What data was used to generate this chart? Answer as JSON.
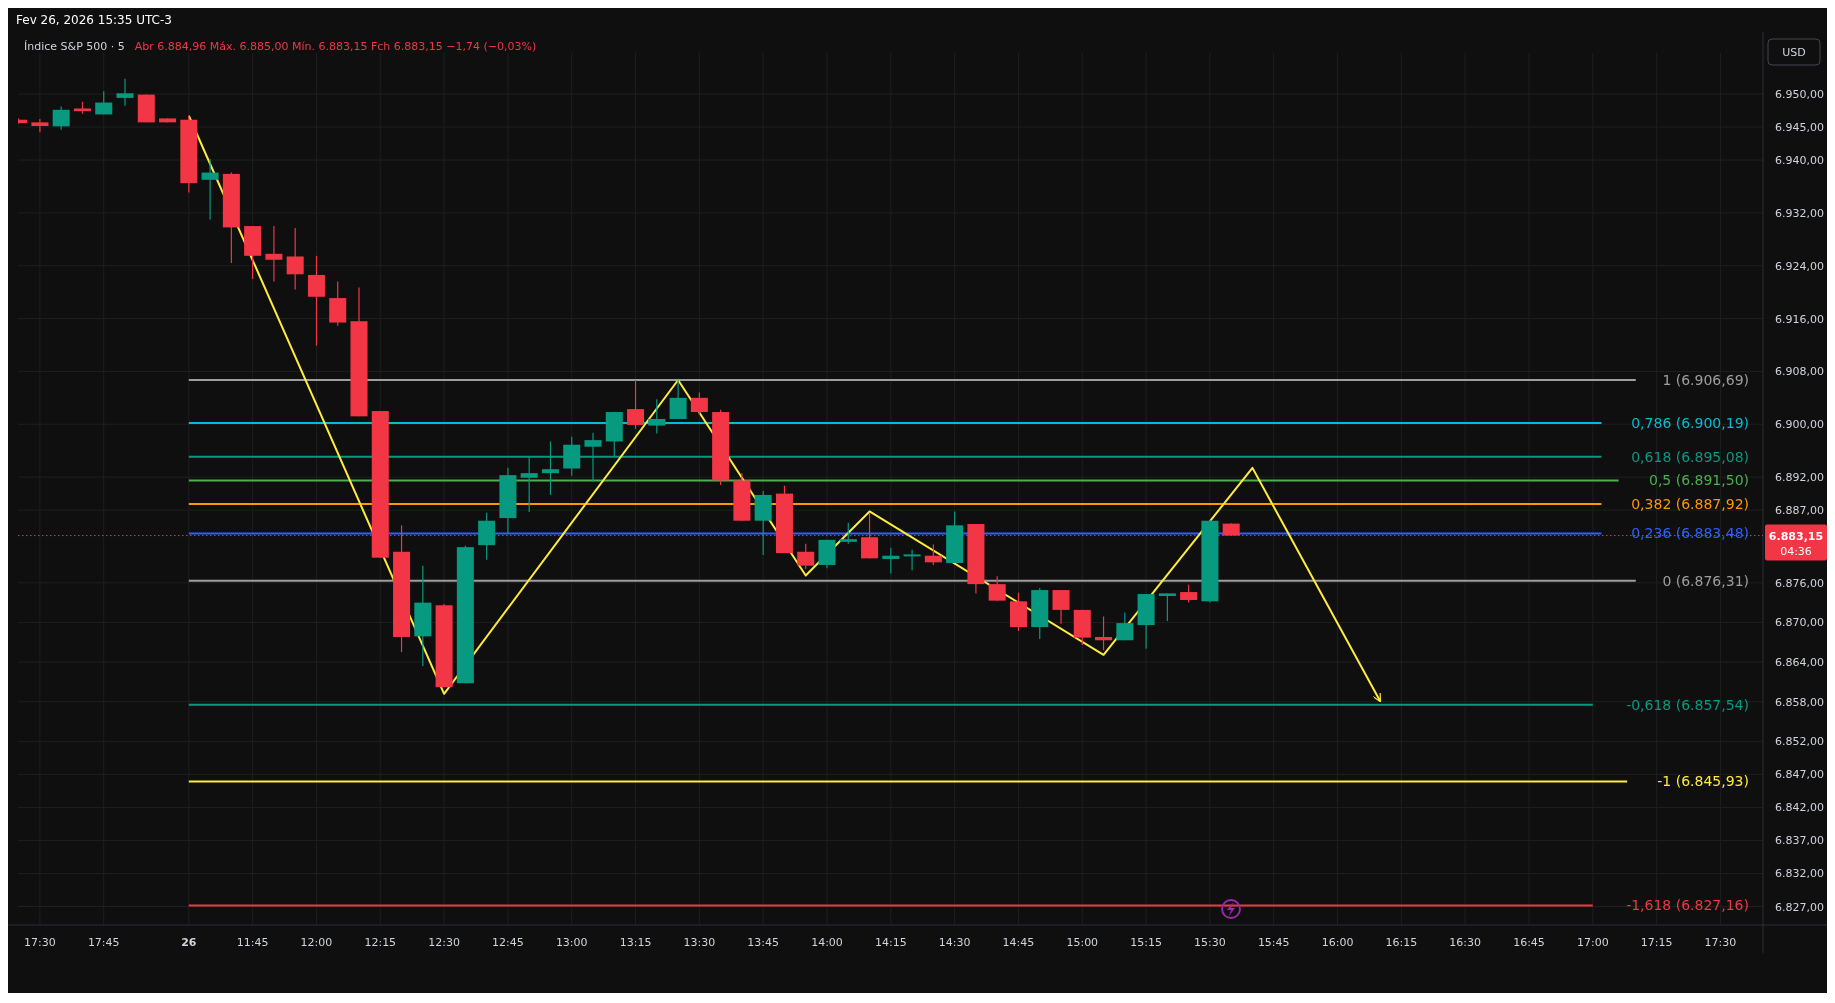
{
  "chart_data": {
    "type": "candlestick",
    "title": "Índice S&P 500 · 5",
    "subtitle": "Abr 6.884,96  Máx. 6.885,00  Mín. 6.883,15  Fch 6.883,15  −1,74 (−0,03%)",
    "annotations": [
      "Fev 26, 2026 15:35 UTC-3",
      "USD",
      "04:36"
    ],
    "categories": [
      null,
      "17:30",
      null,
      null,
      "17:45",
      null,
      null,
      null,
      "26",
      null,
      null,
      "11:45",
      null,
      null,
      "12:00",
      null,
      null,
      "12:15",
      null,
      null,
      "12:30",
      null,
      null,
      "12:45",
      null,
      null,
      "13:00",
      null,
      null,
      "13:15",
      null,
      null,
      "13:30",
      null,
      null,
      "13:45",
      null,
      null,
      "14:00",
      null,
      null,
      "14:15",
      null,
      null,
      "14:30",
      null,
      null,
      "14:45",
      null,
      null,
      "15:00",
      null,
      null,
      "15:15",
      null,
      null,
      "15:30",
      null,
      null,
      "15:45",
      null,
      null,
      "16:00",
      null,
      null,
      "16:15",
      null,
      null,
      "16:30",
      null,
      null,
      "16:45",
      null,
      null,
      "17:00",
      null,
      null,
      "17:15",
      null,
      null,
      "17:30",
      null
    ],
    "ohlc": [
      [
        6946.1,
        6946.3,
        6945.5,
        6945.6
      ],
      [
        6945.7,
        6946.2,
        6944.2,
        6945.15
      ],
      [
        6945.1,
        6948.1,
        6944.6,
        6947.6
      ],
      [
        6947.8,
        6948.8,
        6947.0,
        6947.4
      ],
      [
        6946.9,
        6950.4,
        6946.9,
        6948.7
      ],
      [
        6949.4,
        6952.3,
        6948.2,
        6950.1
      ],
      [
        6949.9,
        6949.9,
        6945.7,
        6945.7
      ],
      [
        6946.3,
        6946.3,
        6945.7,
        6945.7
      ],
      [
        6946.1,
        6946.7,
        6935.1,
        6936.5
      ],
      [
        6937.0,
        6940.1,
        6931.0,
        6938.1
      ],
      [
        6937.9,
        6938.1,
        6924.4,
        6929.8
      ],
      [
        6930.0,
        6930.0,
        6922.0,
        6925.5
      ],
      [
        6925.8,
        6930.0,
        6921.6,
        6924.9
      ],
      [
        6925.4,
        6929.7,
        6920.4,
        6922.7
      ],
      [
        6922.6,
        6925.5,
        6911.9,
        6919.3
      ],
      [
        6919.1,
        6921.6,
        6914.9,
        6915.4
      ],
      [
        6915.6,
        6920.7,
        6901.2,
        6901.2
      ],
      [
        6902.0,
        6902.0,
        6879.8,
        6879.8
      ],
      [
        6880.7,
        6884.7,
        6865.5,
        6867.8
      ],
      [
        6867.9,
        6878.6,
        6863.4,
        6873.0
      ],
      [
        6872.6,
        6872.8,
        6860.2,
        6860.2
      ],
      [
        6860.8,
        6881.6,
        6860.8,
        6881.4
      ],
      [
        6881.7,
        6886.6,
        6879.5,
        6885.4
      ],
      [
        6885.8,
        6893.4,
        6883.4,
        6892.3
      ],
      [
        6891.9,
        6895.2,
        6886.7,
        6892.6
      ],
      [
        6892.6,
        6897.4,
        6889.3,
        6893.2
      ],
      [
        6893.3,
        6898.1,
        6892.2,
        6896.9
      ],
      [
        6896.6,
        6898.7,
        6891.3,
        6897.6
      ],
      [
        6897.4,
        6901.9,
        6895.1,
        6901.85
      ],
      [
        6902.3,
        6906.7,
        6899.3,
        6899.9
      ],
      [
        6899.8,
        6903.8,
        6898.6,
        6900.8
      ],
      [
        6900.8,
        6906.9,
        6900.8,
        6904.0
      ],
      [
        6904.0,
        6904.8,
        6901.4,
        6901.85
      ],
      [
        6901.85,
        6902.2,
        6890.8,
        6891.5
      ],
      [
        6891.5,
        6892.6,
        6885.4,
        6885.4
      ],
      [
        6885.4,
        6889.9,
        6880.2,
        6889.3
      ],
      [
        6889.5,
        6890.7,
        6880.5,
        6880.5
      ],
      [
        6880.7,
        6881.9,
        6878.1,
        6878.6
      ],
      [
        6878.7,
        6882.5,
        6878.2,
        6882.5
      ],
      [
        6882.2,
        6885.1,
        6881.9,
        6882.6
      ],
      [
        6882.9,
        6886.6,
        6879.7,
        6879.7
      ],
      [
        6879.6,
        6881.3,
        6877.4,
        6880.1
      ],
      [
        6880.0,
        6881.0,
        6877.9,
        6880.3
      ],
      [
        6880.1,
        6881.8,
        6878.7,
        6879.1
      ],
      [
        6879.0,
        6886.8,
        6879.0,
        6884.7
      ],
      [
        6884.9,
        6884.9,
        6874.4,
        6875.8
      ],
      [
        6875.8,
        6877.0,
        6873.3,
        6873.3
      ],
      [
        6873.2,
        6874.5,
        6868.7,
        6869.3
      ],
      [
        6869.3,
        6875.2,
        6867.5,
        6874.9
      ],
      [
        6874.9,
        6874.9,
        6869.8,
        6871.9
      ],
      [
        6871.9,
        6871.9,
        6866.6,
        6867.7
      ],
      [
        6867.8,
        6870.9,
        6865.8,
        6867.3
      ],
      [
        6867.3,
        6871.5,
        6867.3,
        6869.9
      ],
      [
        6869.6,
        6874.3,
        6866.0,
        6874.3
      ],
      [
        6874.0,
        6874.4,
        6870.2,
        6874.4
      ],
      [
        6874.6,
        6875.7,
        6873.0,
        6873.4
      ],
      [
        6873.2,
        6885.5,
        6873.0,
        6885.4
      ],
      [
        6884.96,
        6885.0,
        6883.15,
        6883.15
      ],
      null,
      null,
      null,
      null,
      null,
      null,
      null,
      null,
      null,
      null,
      null,
      null,
      null,
      null,
      null,
      null,
      null,
      null,
      null,
      null,
      null,
      null,
      null,
      null
    ],
    "colors": [
      "#f23645",
      "#f23645",
      "#089981",
      "#f23645",
      "#089981",
      "#089981",
      "#f23645",
      "#f23645",
      "#f23645",
      "#089981",
      "#f23645",
      "#f23645",
      "#f23645",
      "#f23645",
      "#f23645",
      "#f23645",
      "#f23645",
      "#f23645",
      "#f23645",
      "#089981",
      "#f23645",
      "#089981",
      "#089981",
      "#089981",
      "#089981",
      "#089981",
      "#089981",
      "#089981",
      "#089981",
      "#f23645",
      "#089981",
      "#089981",
      "#f23645",
      "#f23645",
      "#f23645",
      "#089981",
      "#f23645",
      "#f23645",
      "#089981",
      "#089981",
      "#f23645",
      "#089981",
      "#089981",
      "#f23645",
      "#089981",
      "#f23645",
      "#f23645",
      "#f23645",
      "#089981",
      "#f23645",
      "#f23645",
      "#f23645",
      "#089981",
      "#089981",
      "#089981",
      "#f23645",
      "#089981",
      "#f23645",
      null,
      null,
      null,
      null,
      null,
      null,
      null,
      null,
      null,
      null,
      null,
      null,
      null,
      null,
      null,
      null,
      null,
      null,
      null,
      null,
      null,
      null,
      null,
      null
    ],
    "series": [
      {
        "type": "line",
        "color": "#ffeb3b",
        "values": [
          null,
          null,
          null,
          null,
          null,
          null,
          null,
          null,
          6946.7,
          null,
          null,
          null,
          null,
          null,
          null,
          null,
          null,
          null,
          null,
          null,
          6859.2,
          null,
          null,
          null,
          null,
          null,
          null,
          null,
          null,
          null,
          null,
          6906.7,
          null,
          null,
          null,
          null,
          null,
          6877.1,
          null,
          null,
          6886.8,
          null,
          null,
          null,
          null,
          null,
          null,
          null,
          null,
          null,
          null,
          6865.1,
          null,
          null,
          null,
          null,
          null,
          null,
          6893.4,
          null,
          null,
          null,
          null,
          null,
          6858.1,
          null,
          null,
          null,
          null,
          null,
          null,
          null,
          null,
          null,
          null,
          null,
          null,
          null,
          null,
          null,
          null,
          null
        ]
      }
    ],
    "ref_lines": [
      {
        "axis": "y",
        "value": 6906.69,
        "label": "1 (6.906,69)",
        "color": "#9e9e9e"
      },
      {
        "axis": "y",
        "value": 6900.19,
        "label": "0,786 (6.900,19)",
        "color": "#00bcd4"
      },
      {
        "axis": "y",
        "value": 6895.08,
        "label": "0,618 (6.895,08)",
        "color": "#089981"
      },
      {
        "axis": "y",
        "value": 6891.5,
        "label": "0,5 (6.891,50)",
        "color": "#4caf50"
      },
      {
        "axis": "y",
        "value": 6887.92,
        "label": "0,382 (6.887,92)",
        "color": "#ff9800"
      },
      {
        "axis": "y",
        "value": 6883.48,
        "label": "0,236 (6.883,48)",
        "color": "#2962ff"
      },
      {
        "axis": "y",
        "value": 6876.31,
        "label": "0 (6.876,31)",
        "color": "#9e9e9e"
      },
      {
        "axis": "y",
        "value": 6857.54,
        "label": "-0,618 (6.857,54)",
        "color": "#089981"
      },
      {
        "axis": "y",
        "value": 6845.93,
        "label": "-1 (6.845,93)",
        "color": "#ffeb3b"
      },
      {
        "axis": "y",
        "value": 6827.16,
        "label": "-1,618 (6.827,16)",
        "color": "#f23645"
      },
      {
        "axis": "y",
        "value": 6883.15,
        "label": "6.883,15",
        "color": "#f23645",
        "line_style": "dotted"
      }
    ],
    "ylim": [
      6824.2,
      6956.2
    ],
    "yticks": [
      {
        "value": 6950,
        "label": "6.950,00"
      },
      {
        "value": 6945,
        "label": "6.945,00"
      },
      {
        "value": 6940,
        "label": "6.940,00"
      },
      {
        "value": 6932,
        "label": "6.932,00"
      },
      {
        "value": 6924,
        "label": "6.924,00"
      },
      {
        "value": 6916,
        "label": "6.916,00"
      },
      {
        "value": 6908,
        "label": "6.908,00"
      },
      {
        "value": 6900,
        "label": "6.900,00"
      },
      {
        "value": 6892,
        "label": "6.892,00"
      },
      {
        "value": 6887,
        "label": "6.887,00"
      },
      {
        "value": 6876,
        "label": "6.876,00"
      },
      {
        "value": 6870,
        "label": "6.870,00"
      },
      {
        "value": 6864,
        "label": "6.864,00"
      },
      {
        "value": 6858,
        "label": "6.858,00"
      },
      {
        "value": 6852,
        "label": "6.852,00"
      },
      {
        "value": 6847,
        "label": "6.847,00"
      },
      {
        "value": 6842,
        "label": "6.842,00"
      },
      {
        "value": 6837,
        "label": "6.837,00"
      },
      {
        "value": 6832,
        "label": "6.832,00"
      },
      {
        "value": 6827,
        "label": "6.827,00"
      }
    ],
    "grid": true
  }
}
